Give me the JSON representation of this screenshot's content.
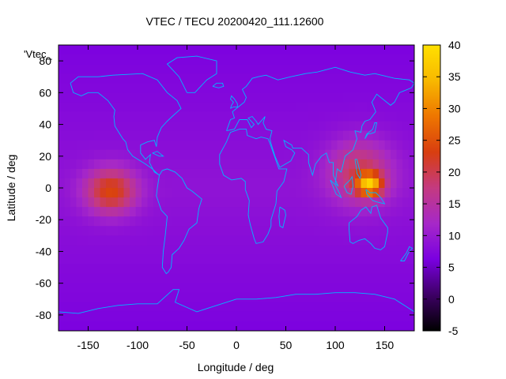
{
  "chart_data": {
    "type": "heatmap",
    "title": "VTEC / TECU 20200420_111.12600",
    "xlabel": "Longitude / deg",
    "ylabel": "Latitude / deg",
    "series_label": "'Vtec_",
    "xlim": [
      -180,
      180
    ],
    "ylim": [
      -90,
      90
    ],
    "x_ticks": [
      "-150",
      "-100",
      "-50",
      "0",
      "50",
      "100",
      "150"
    ],
    "x_tick_values": [
      -150,
      -100,
      -50,
      0,
      50,
      100,
      150
    ],
    "y_ticks": [
      "-80",
      "-60",
      "-40",
      "-20",
      "0",
      "20",
      "40",
      "60",
      "80"
    ],
    "y_tick_values": [
      -80,
      -60,
      -40,
      -20,
      0,
      20,
      40,
      60,
      80
    ],
    "colorbar": {
      "range": [
        -5,
        40
      ],
      "ticks": [
        "-5",
        "0",
        "5",
        "10",
        "15",
        "20",
        "25",
        "30",
        "35",
        "40"
      ],
      "tick_values": [
        -5,
        0,
        5,
        10,
        15,
        20,
        25,
        30,
        35,
        40
      ],
      "palette": [
        "#000000",
        "#3d0064",
        "#7a00e0",
        "#a628c8",
        "#c43a80",
        "#d83e10",
        "#ee7600",
        "#f8b800",
        "#ffe000"
      ]
    },
    "background_value": 9,
    "features": [
      {
        "lon": -127,
        "lat": -2,
        "value": 24,
        "sigma_lon": 18,
        "sigma_lat": 10
      },
      {
        "lon": 125,
        "lat": 10,
        "value": 20,
        "sigma_lon": 22,
        "sigma_lat": 14
      },
      {
        "lon": 135,
        "lat": 2,
        "value": 30,
        "sigma_lon": 9,
        "sigma_lat": 5
      }
    ],
    "coastline_color": "#00b8ff"
  }
}
